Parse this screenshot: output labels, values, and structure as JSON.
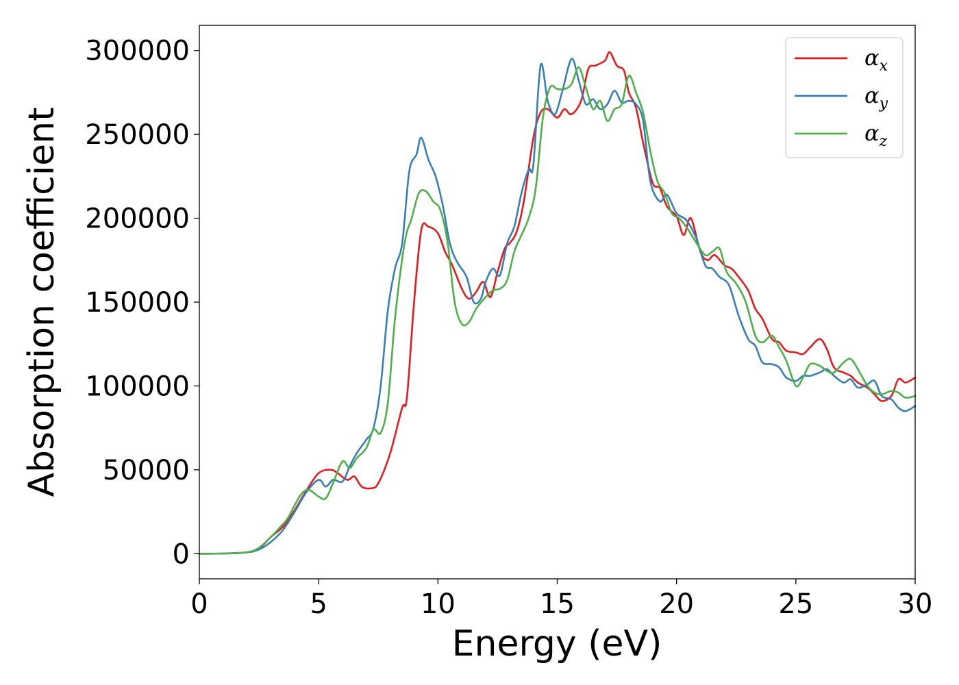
{
  "chart_data": {
    "type": "line",
    "xlabel": "Energy (eV)",
    "ylabel": "Absorption coefficient",
    "xlim": [
      0,
      30
    ],
    "ylim": [
      -15000,
      315000
    ],
    "xticks": [
      0,
      5,
      10,
      15,
      20,
      25,
      30
    ],
    "xtick_labels": [
      "0",
      "5",
      "10",
      "15",
      "20",
      "25",
      "30"
    ],
    "yticks": [
      0,
      50000,
      100000,
      150000,
      200000,
      250000,
      300000
    ],
    "ytick_labels": [
      "0",
      "50000",
      "100000",
      "150000",
      "200000",
      "250000",
      "300000"
    ],
    "grid": false,
    "legend_position": "top-right",
    "series": [
      {
        "name": "α_x",
        "label_main": "α",
        "label_sub": "x",
        "color": "#e41a1c",
        "x": [
          0,
          1,
          2,
          2.5,
          3,
          3.5,
          4,
          4.5,
          5,
          5.5,
          5.8,
          6.2,
          6.5,
          6.8,
          7.2,
          7.5,
          8,
          8.5,
          8.7,
          9,
          9.3,
          9.6,
          10,
          10.3,
          10.6,
          11,
          11.3,
          11.6,
          11.9,
          12.2,
          12.5,
          12.8,
          13,
          13.3,
          13.6,
          14,
          14.3,
          14.6,
          15,
          15.3,
          15.6,
          16,
          16.3,
          16.6,
          17,
          17.2,
          17.5,
          17.8,
          18,
          18.3,
          18.6,
          19,
          19.3,
          19.6,
          20,
          20.3,
          20.6,
          21,
          21.3,
          21.6,
          22,
          22.3,
          22.6,
          23,
          23.3,
          23.6,
          24,
          24.3,
          24.6,
          25,
          25.3,
          25.6,
          26,
          26.3,
          26.6,
          27,
          27.3,
          27.6,
          28,
          28.3,
          28.6,
          29,
          29.3,
          29.6,
          30
        ],
        "y": [
          0,
          100,
          800,
          3000,
          10000,
          16000,
          26000,
          38000,
          48000,
          50000,
          48000,
          44000,
          46000,
          40000,
          39000,
          42000,
          60000,
          87000,
          93000,
          150000,
          193000,
          195000,
          191000,
          180000,
          172000,
          158000,
          152000,
          156000,
          162000,
          153000,
          168000,
          182000,
          185000,
          192000,
          210000,
          248000,
          263000,
          265000,
          260000,
          265000,
          262000,
          270000,
          289000,
          291000,
          294000,
          299000,
          291000,
          288000,
          275000,
          266000,
          245000,
          221000,
          218000,
          207000,
          201000,
          190000,
          200000,
          180000,
          175000,
          178000,
          172000,
          170000,
          165000,
          157000,
          146000,
          140000,
          128000,
          126000,
          121000,
          120000,
          119000,
          123000,
          128000,
          122000,
          111000,
          108000,
          106000,
          102000,
          99000,
          95000,
          91000,
          94000,
          104000,
          102000,
          105000
        ]
      },
      {
        "name": "α_y",
        "label_main": "α",
        "label_sub": "y",
        "color": "#377eb8",
        "x": [
          0,
          1,
          2,
          2.5,
          3,
          3.5,
          4,
          4.5,
          5,
          5.3,
          5.6,
          6,
          6.3,
          6.6,
          7,
          7.3,
          7.6,
          7.9,
          8.2,
          8.5,
          8.8,
          9.1,
          9.3,
          9.6,
          9.9,
          10.2,
          10.5,
          10.8,
          11.2,
          11.5,
          11.8,
          12,
          12.3,
          12.6,
          12.9,
          13.2,
          13.5,
          13.8,
          14,
          14.3,
          14.6,
          14.9,
          15.2,
          15.6,
          15.9,
          16.2,
          16.5,
          16.8,
          17.1,
          17.4,
          17.7,
          18,
          18.3,
          18.6,
          18.9,
          19.3,
          19.6,
          20,
          20.4,
          20.8,
          21.2,
          21.5,
          21.8,
          22.2,
          22.6,
          23,
          23.3,
          23.6,
          24,
          24.3,
          24.6,
          25,
          25.3,
          25.6,
          26,
          26.3,
          26.6,
          27,
          27.3,
          27.6,
          28,
          28.3,
          28.6,
          29,
          29.3,
          29.6,
          30
        ],
        "y": [
          0,
          100,
          800,
          2500,
          7000,
          14000,
          25000,
          37000,
          44000,
          40000,
          44000,
          43000,
          52000,
          60000,
          68000,
          75000,
          100000,
          145000,
          170000,
          185000,
          228000,
          238000,
          248000,
          235000,
          225000,
          208000,
          185000,
          174000,
          165000,
          150000,
          152000,
          162000,
          170000,
          166000,
          185000,
          195000,
          215000,
          229000,
          232000,
          291000,
          270000,
          262000,
          275000,
          295000,
          282000,
          268000,
          271000,
          265000,
          268000,
          276000,
          269000,
          270000,
          268000,
          258000,
          222000,
          210000,
          214000,
          203000,
          199000,
          189000,
          172000,
          170000,
          165000,
          160000,
          142000,
          128000,
          124000,
          114000,
          113000,
          111000,
          105000,
          103000,
          106000,
          106000,
          108000,
          110000,
          106000,
          102000,
          104000,
          99000,
          101000,
          103000,
          94000,
          92000,
          87000,
          85000,
          88000
        ]
      },
      {
        "name": "α_z",
        "label_main": "α",
        "label_sub": "z",
        "color": "#4daf4a",
        "x": [
          0,
          1,
          2,
          2.5,
          3,
          3.4,
          3.7,
          4,
          4.3,
          4.6,
          5,
          5.3,
          5.6,
          6,
          6.3,
          6.6,
          7,
          7.3,
          7.6,
          7.9,
          8.2,
          8.6,
          8.9,
          9.2,
          9.5,
          9.8,
          10.1,
          10.4,
          10.7,
          11,
          11.3,
          11.6,
          12,
          12.3,
          12.6,
          12.9,
          13.2,
          13.5,
          13.8,
          14.1,
          14.4,
          14.7,
          15,
          15.3,
          15.6,
          15.9,
          16.2,
          16.5,
          16.8,
          17.1,
          17.4,
          17.7,
          18,
          18.3,
          18.6,
          18.9,
          19.2,
          19.5,
          19.8,
          20.1,
          20.4,
          20.8,
          21.2,
          21.5,
          21.8,
          22.1,
          22.5,
          22.9,
          23.3,
          23.6,
          24,
          24.3,
          24.6,
          25,
          25.3,
          25.6,
          26,
          26.3,
          26.6,
          27,
          27.3,
          27.6,
          28,
          28.3,
          28.6,
          29,
          29.3,
          29.6,
          30
        ],
        "y": [
          0,
          100,
          900,
          3500,
          10000,
          16000,
          21000,
          29000,
          36000,
          38000,
          34000,
          33000,
          42000,
          55000,
          51000,
          57000,
          63000,
          74000,
          72000,
          90000,
          140000,
          185000,
          200000,
          215000,
          216000,
          210000,
          205000,
          186000,
          150000,
          137000,
          138000,
          146000,
          153000,
          157000,
          158000,
          163000,
          180000,
          190000,
          200000,
          218000,
          260000,
          278000,
          277000,
          277000,
          280000,
          290000,
          278000,
          265000,
          270000,
          258000,
          265000,
          268000,
          285000,
          275000,
          263000,
          240000,
          222000,
          215000,
          203000,
          200000,
          195000,
          186000,
          178000,
          180000,
          182000,
          168000,
          161000,
          150000,
          130000,
          126000,
          130000,
          123000,
          115000,
          100000,
          105000,
          113000,
          112000,
          109000,
          108000,
          114000,
          116000,
          110000,
          100000,
          96000,
          95000,
          97000,
          96000,
          93000,
          94000
        ]
      }
    ]
  }
}
